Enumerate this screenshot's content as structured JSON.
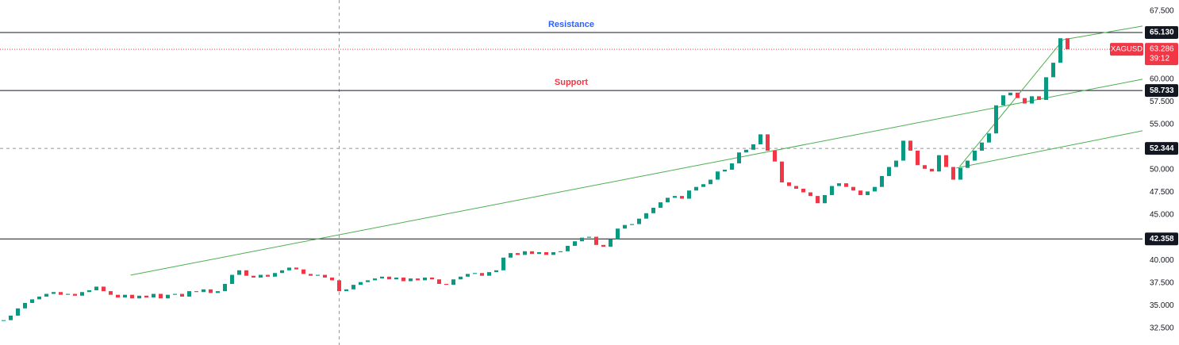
{
  "chart_data": {
    "type": "candlestick",
    "series": [
      {
        "name": "XAGUSD",
        "up_color": "#089981",
        "down_color": "#f23645",
        "values": [
          33.4,
          33.9,
          34.7,
          35.3,
          35.7,
          36.0,
          36.3,
          36.5,
          36.2,
          36.3,
          36.1,
          36.5,
          36.7,
          37.1,
          36.6,
          36.2,
          35.9,
          36.2,
          35.8,
          36.1,
          35.9,
          36.3,
          35.8,
          36.2,
          36.3,
          36.0,
          36.6,
          36.5,
          36.8,
          36.4,
          36.6,
          37.4,
          38.4,
          38.9,
          38.3,
          38.1,
          38.4,
          38.2,
          38.6,
          38.9,
          39.2,
          39.0,
          38.5,
          38.3,
          38.4,
          38.1,
          37.8,
          36.6,
          36.8,
          37.3,
          37.6,
          37.8,
          38.0,
          38.2,
          37.9,
          38.1,
          37.7,
          38.0,
          37.8,
          38.1,
          37.9,
          37.4,
          37.3,
          37.9,
          38.2,
          38.5,
          38.6,
          38.3,
          38.7,
          38.9,
          40.3,
          40.8,
          40.6,
          41.0,
          40.7,
          40.9,
          40.6,
          40.9,
          41.0,
          41.6,
          42.1,
          42.5,
          42.6,
          41.7,
          41.5,
          42.3,
          43.5,
          43.9,
          44.0,
          44.6,
          45.2,
          45.8,
          46.4,
          46.9,
          47.1,
          46.8,
          47.7,
          48.1,
          48.4,
          48.9,
          49.8,
          50.0,
          50.7,
          51.9,
          52.2,
          52.8,
          53.9,
          52.1,
          50.9,
          48.6,
          48.2,
          47.9,
          47.5,
          47.1,
          46.3,
          47.2,
          48.2,
          48.5,
          48.1,
          47.7,
          47.2,
          47.6,
          48.1,
          49.3,
          50.3,
          51.0,
          53.2,
          52.1,
          50.5,
          50.1,
          49.8,
          51.6,
          50.3,
          48.9,
          50.2,
          51.0,
          52.1,
          53.0,
          54.0,
          57.1,
          58.2,
          58.5,
          57.9,
          57.3,
          58.1,
          57.7,
          60.2,
          61.8,
          64.5,
          63.286
        ]
      }
    ],
    "xlim": [
      -0.5,
      159.5
    ],
    "ylim": [
      30.66,
      68.72
    ],
    "yticks": [
      {
        "value": 67.5,
        "label": "67.500"
      },
      {
        "value": 60,
        "label": "60.000"
      },
      {
        "value": 57.5,
        "label": "57.500"
      },
      {
        "value": 55,
        "label": "55.000"
      },
      {
        "value": 50,
        "label": "50.000"
      },
      {
        "value": 47.5,
        "label": "47.500"
      },
      {
        "value": 45,
        "label": "45.000"
      },
      {
        "value": 40,
        "label": "40.000"
      },
      {
        "value": 37.5,
        "label": "37.500"
      },
      {
        "value": 35,
        "label": "35.000"
      },
      {
        "value": 32.5,
        "label": "32.500"
      }
    ],
    "levels": [
      {
        "value": 65.13,
        "label": "65.130",
        "text": "Resistance",
        "text_color": "#2962ff"
      },
      {
        "value": 58.733,
        "label": "58.733",
        "text": "Support",
        "text_color": "#f23645"
      },
      {
        "value": 42.358,
        "label": "42.358"
      }
    ],
    "crosshair": {
      "x": 47,
      "y": 52.344,
      "label": "52.344"
    },
    "price_line": {
      "symbol": "XAGUSD",
      "countdown": "39:12",
      "color": "#f23645"
    },
    "trendline_color": "#4caf50",
    "trendlines": [
      [
        [
          17.8,
          38.37
        ],
        [
          159.5,
          59.98
        ]
      ],
      [
        [
          133.4,
          50.18
        ],
        [
          159.5,
          54.29
        ]
      ],
      [
        [
          133.9,
          50.35
        ],
        [
          148.4,
          64.35
        ]
      ],
      [
        [
          148.4,
          64.35
        ],
        [
          159.5,
          65.84
        ]
      ]
    ]
  }
}
